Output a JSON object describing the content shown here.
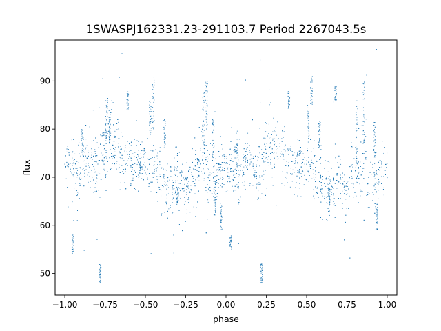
{
  "chart_data": {
    "type": "scatter",
    "title": "1SWASPJ162331.23-291103.7 Period 2267043.5s",
    "xlabel": "phase",
    "ylabel": "flux",
    "xlim": [
      -1.06,
      1.06
    ],
    "ylim": [
      45.5,
      98.5
    ],
    "xticks": [
      -1.0,
      -0.75,
      -0.5,
      -0.25,
      0.0,
      0.25,
      0.5,
      0.75,
      1.0
    ],
    "xtick_labels": [
      "−1.00",
      "−0.75",
      "−0.50",
      "−0.25",
      "0.00",
      "0.25",
      "0.50",
      "0.75",
      "1.00"
    ],
    "yticks": [
      50,
      60,
      70,
      80,
      90
    ],
    "ytick_labels": [
      "50",
      "60",
      "70",
      "80",
      "90"
    ],
    "grid": false,
    "marker_color": "#1f77b4",
    "profile": {
      "description_of_values": "approximate flux centre / spread per phase interval (data units), light curve repeated over phase -1..0 and 0..1",
      "phase": [
        0.0,
        0.03,
        0.06,
        0.08,
        0.1,
        0.13,
        0.16,
        0.18,
        0.2,
        0.22,
        0.25,
        0.27,
        0.3,
        0.33,
        0.36,
        0.4,
        0.43,
        0.46,
        0.5,
        0.53,
        0.56,
        0.6,
        0.63,
        0.66,
        0.7,
        0.73,
        0.76,
        0.8,
        0.83,
        0.86,
        0.88,
        0.9,
        0.93,
        0.96,
        1.0
      ],
      "flux": [
        72.0,
        73.0,
        72.0,
        68.0,
        70.5,
        74.5,
        73.0,
        71.5,
        70.0,
        72.0,
        76.5,
        77.0,
        76.0,
        75.5,
        74.0,
        73.0,
        72.0,
        71.5,
        73.0,
        72.0,
        72.0,
        66.5,
        68.0,
        67.0,
        70.5,
        68.0,
        68.0,
        71.0,
        72.0,
        74.0,
        70.0,
        69.5,
        68.5,
        72.0,
        72.0
      ],
      "spread": [
        2.5,
        2.5,
        2.5,
        4.0,
        2.5,
        3.0,
        2.5,
        3.0,
        3.0,
        3.0,
        3.5,
        3.5,
        3.5,
        3.5,
        3.0,
        2.5,
        2.5,
        2.5,
        2.5,
        2.5,
        3.0,
        3.5,
        3.0,
        3.0,
        3.0,
        2.5,
        2.5,
        3.0,
        3.5,
        4.0,
        3.5,
        3.5,
        3.0,
        2.5,
        2.5
      ]
    },
    "features": [
      {
        "x": 0.81,
        "ylo": 72,
        "yhi": 86
      },
      {
        "x": 0.855,
        "ylo": 76,
        "yhi": 90
      },
      {
        "x": 0.92,
        "ylo": 74,
        "yhi": 82
      },
      {
        "x": 0.935,
        "ylo": 59,
        "yhi": 64
      },
      {
        "x": 0.64,
        "ylo": 62,
        "yhi": 68
      },
      {
        "x": 0.58,
        "ylo": 76,
        "yhi": 82
      },
      {
        "x": 0.51,
        "ylo": 78,
        "yhi": 85
      },
      {
        "x": 0.53,
        "ylo": 85,
        "yhi": 91
      },
      {
        "x": 0.68,
        "ylo": 86,
        "yhi": 89
      },
      {
        "x": 0.07,
        "ylo": 72,
        "yhi": 80
      },
      {
        "x": -0.03,
        "ylo": 59,
        "yhi": 65
      },
      {
        "x": -0.07,
        "ylo": 62,
        "yhi": 68
      },
      {
        "x": 0.03,
        "ylo": 55,
        "yhi": 58
      },
      {
        "x": -0.95,
        "ylo": 54,
        "yhi": 58
      },
      {
        "x": -0.89,
        "ylo": 74,
        "yhi": 80
      },
      {
        "x": -0.72,
        "ylo": 78,
        "yhi": 84
      },
      {
        "x": -0.74,
        "ylo": 78,
        "yhi": 86
      },
      {
        "x": -0.14,
        "ylo": 76,
        "yhi": 88
      },
      {
        "x": -0.12,
        "ylo": 80,
        "yhi": 90
      },
      {
        "x": -0.08,
        "ylo": 74,
        "yhi": 82
      },
      {
        "x": -0.47,
        "ylo": 78,
        "yhi": 86
      },
      {
        "x": -0.45,
        "ylo": 80,
        "yhi": 91
      },
      {
        "x": -0.38,
        "ylo": 76,
        "yhi": 82
      },
      {
        "x": -0.3,
        "ylo": 64,
        "yhi": 68
      },
      {
        "x": 0.22,
        "ylo": 48,
        "yhi": 52
      },
      {
        "x": -0.78,
        "ylo": 48,
        "yhi": 52
      },
      {
        "x": 0.39,
        "ylo": 84,
        "yhi": 88
      },
      {
        "x": -0.61,
        "ylo": 84,
        "yhi": 88
      }
    ],
    "n_points": 5200,
    "outlier_range": [
      47,
      97
    ]
  }
}
